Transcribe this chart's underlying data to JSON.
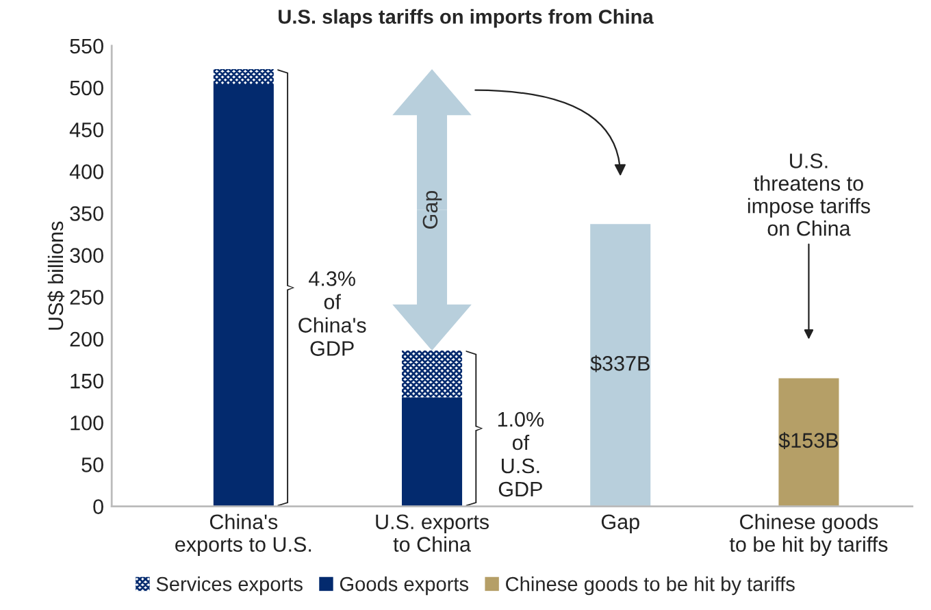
{
  "chart_data": {
    "type": "bar",
    "title": "U.S. slaps tariffs on imports from China",
    "ylabel": "US$ billions",
    "categories": [
      "China's\nexports to U.S.",
      "U.S. exports\nto China",
      "Gap",
      "Chinese goods\nto be hit by tariffs"
    ],
    "stacked": true,
    "series": [
      {
        "name": "Goods exports",
        "color": "#032a6e",
        "values": [
          504,
          130,
          null,
          null
        ]
      },
      {
        "name": "Services exports",
        "color": "#032a6e",
        "values": [
          18,
          56,
          null,
          null
        ]
      },
      {
        "color": "#b8cfdc",
        "values": [
          null,
          null,
          337,
          null
        ],
        "value_labels": [
          null,
          null,
          "$337B",
          null
        ]
      },
      {
        "name": "Chinese goods to be hit by tariffs",
        "color": "#b59f67",
        "values": [
          null,
          null,
          null,
          153
        ],
        "value_labels": [
          null,
          null,
          null,
          "$153B"
        ]
      }
    ],
    "ylim": [
      0,
      550
    ],
    "yticks": [
      0,
      50,
      100,
      150,
      200,
      250,
      300,
      350,
      400,
      450,
      500,
      550
    ],
    "grid": false,
    "legend": "bottom",
    "annotations": [
      "Gap",
      "4.3%\nof\nChina's\nGDP",
      "1.0%\nof\nU.S.\nGDP",
      "U.S.\nthreatens to\nimpose tariffs\non China"
    ]
  }
}
